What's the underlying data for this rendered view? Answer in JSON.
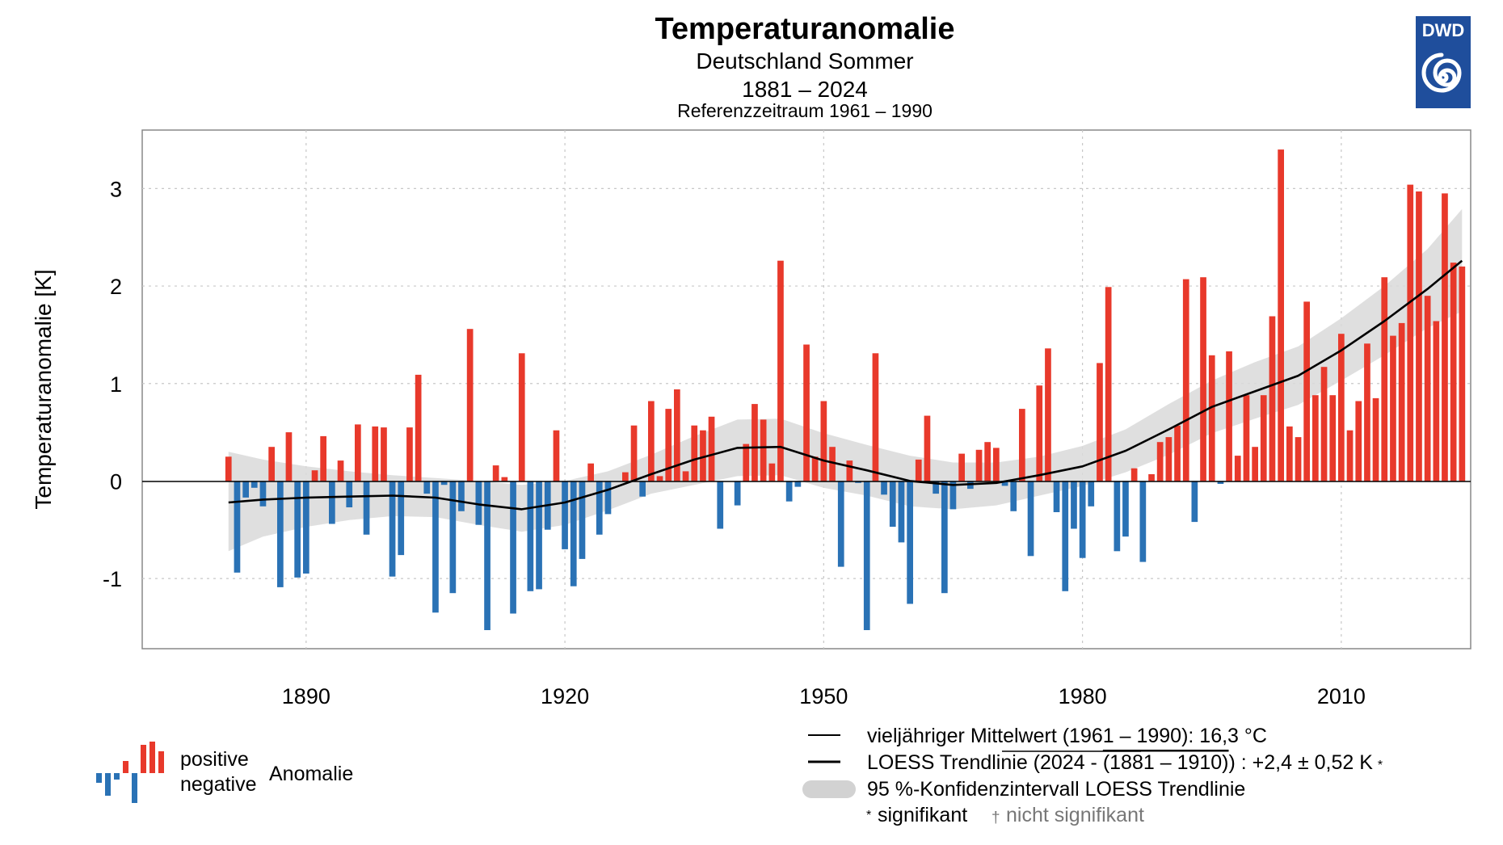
{
  "header": {
    "title": "Temperaturanomalie",
    "subtitle": "Deutschland Sommer",
    "period": "1881 – 2024",
    "reference": "Referenzzeitraum 1961 – 1990",
    "logo_text": "DWD"
  },
  "colors": {
    "positive": "#e8392b",
    "negative": "#2a72b5",
    "band": "#d9d9d9",
    "trend": "#000000",
    "logo": "#1f4e9c"
  },
  "chart_data": {
    "type": "bar",
    "title": "Temperaturanomalie",
    "ylabel": "Temperaturanomalie [K]",
    "xlabel": "",
    "xlim": [
      1871,
      2025
    ],
    "ylim": [
      -1.72,
      3.6
    ],
    "x_ticks": [
      1890,
      1920,
      1950,
      1980,
      2010
    ],
    "y_ticks": [
      -1,
      0,
      1,
      2,
      3
    ],
    "y_tick_labels": [
      "-1",
      "0",
      "1",
      "2",
      "3"
    ],
    "grid": true,
    "start_year": 1881,
    "values": [
      0.25,
      -0.94,
      -0.17,
      -0.07,
      -0.26,
      0.35,
      -1.09,
      0.5,
      -0.99,
      -0.95,
      0.11,
      0.46,
      -0.44,
      0.21,
      -0.27,
      0.58,
      -0.55,
      0.56,
      0.55,
      -0.98,
      -0.76,
      0.55,
      1.09,
      -0.13,
      -1.35,
      -0.04,
      -1.15,
      -0.31,
      1.56,
      -0.45,
      -1.53,
      0.16,
      0.04,
      -1.36,
      1.31,
      -1.13,
      -1.11,
      -0.5,
      0.52,
      -0.7,
      -1.08,
      -0.8,
      0.18,
      -0.55,
      -0.34,
      0.0,
      0.09,
      0.57,
      -0.16,
      0.82,
      0.05,
      0.74,
      0.94,
      0.1,
      0.57,
      0.52,
      0.66,
      -0.49,
      0.0,
      -0.25,
      0.38,
      0.79,
      0.63,
      0.18,
      2.26,
      -0.21,
      -0.06,
      1.4,
      0.25,
      0.82,
      0.35,
      -0.88,
      0.21,
      -0.02,
      -1.53,
      1.31,
      -0.14,
      -0.47,
      -0.63,
      -1.26,
      0.22,
      0.67,
      -0.13,
      -1.15,
      -0.29,
      0.28,
      -0.08,
      0.32,
      0.4,
      0.34,
      -0.05,
      -0.31,
      0.74,
      -0.77,
      0.98,
      1.36,
      -0.32,
      -1.13,
      -0.49,
      -0.79,
      -0.26,
      1.21,
      1.99,
      -0.72,
      -0.57,
      0.13,
      -0.83,
      0.07,
      0.4,
      0.45,
      0.57,
      2.07,
      -0.42,
      2.09,
      1.29,
      -0.03,
      1.33,
      0.26,
      0.88,
      0.35,
      0.88,
      1.69,
      3.4,
      0.56,
      0.45,
      1.84,
      0.88,
      1.17,
      0.88,
      1.51,
      0.52,
      0.82,
      1.41,
      0.85,
      2.09,
      1.49,
      1.62,
      3.04,
      2.97,
      1.9,
      1.64,
      2.95,
      2.24,
      2.2
    ],
    "trend": {
      "years": [
        1881,
        1885,
        1890,
        1895,
        1900,
        1905,
        1910,
        1915,
        1920,
        1925,
        1930,
        1935,
        1940,
        1945,
        1950,
        1955,
        1960,
        1965,
        1970,
        1975,
        1980,
        1985,
        1990,
        1995,
        2000,
        2005,
        2010,
        2015,
        2020,
        2024
      ],
      "values": [
        -0.22,
        -0.19,
        -0.17,
        -0.16,
        -0.15,
        -0.17,
        -0.24,
        -0.29,
        -0.22,
        -0.09,
        0.07,
        0.22,
        0.34,
        0.35,
        0.21,
        0.11,
        0.0,
        -0.04,
        -0.02,
        0.06,
        0.15,
        0.31,
        0.53,
        0.76,
        0.92,
        1.08,
        1.34,
        1.64,
        1.97,
        2.26
      ],
      "ci_upper": [
        0.3,
        0.22,
        0.15,
        0.1,
        0.06,
        0.03,
        0.0,
        -0.04,
        0.0,
        0.1,
        0.27,
        0.46,
        0.63,
        0.64,
        0.49,
        0.37,
        0.26,
        0.19,
        0.19,
        0.25,
        0.36,
        0.53,
        0.79,
        1.03,
        1.22,
        1.38,
        1.67,
        2.0,
        2.38,
        2.79
      ],
      "ci_lower": [
        -0.72,
        -0.57,
        -0.47,
        -0.4,
        -0.36,
        -0.37,
        -0.45,
        -0.52,
        -0.45,
        -0.3,
        -0.13,
        -0.04,
        0.05,
        0.06,
        -0.07,
        -0.15,
        -0.26,
        -0.29,
        -0.25,
        -0.15,
        -0.05,
        0.09,
        0.27,
        0.49,
        0.64,
        0.78,
        1.03,
        1.29,
        1.57,
        1.74
      ]
    }
  },
  "legend": {
    "positive": "positive",
    "negative": "negative",
    "anomalie": "Anomalie",
    "mean_label": "vieljähriger Mittelwert (1961 – 1990): 16,3 °C",
    "trend_label_prefix": "LOESS Trendlinie (2024 - ",
    "trend_label_overline": "(1881 – 1910)",
    "trend_label_suffix": ") : +2,4 ± 0,52 K",
    "trend_star": "*",
    "ci_label": "95 %-Konfidenzintervall LOESS Trendlinie",
    "sig_star": "*",
    "sig_label": "signifikant",
    "nonsig_dagger": "†",
    "nonsig_label": "nicht signifikant"
  }
}
